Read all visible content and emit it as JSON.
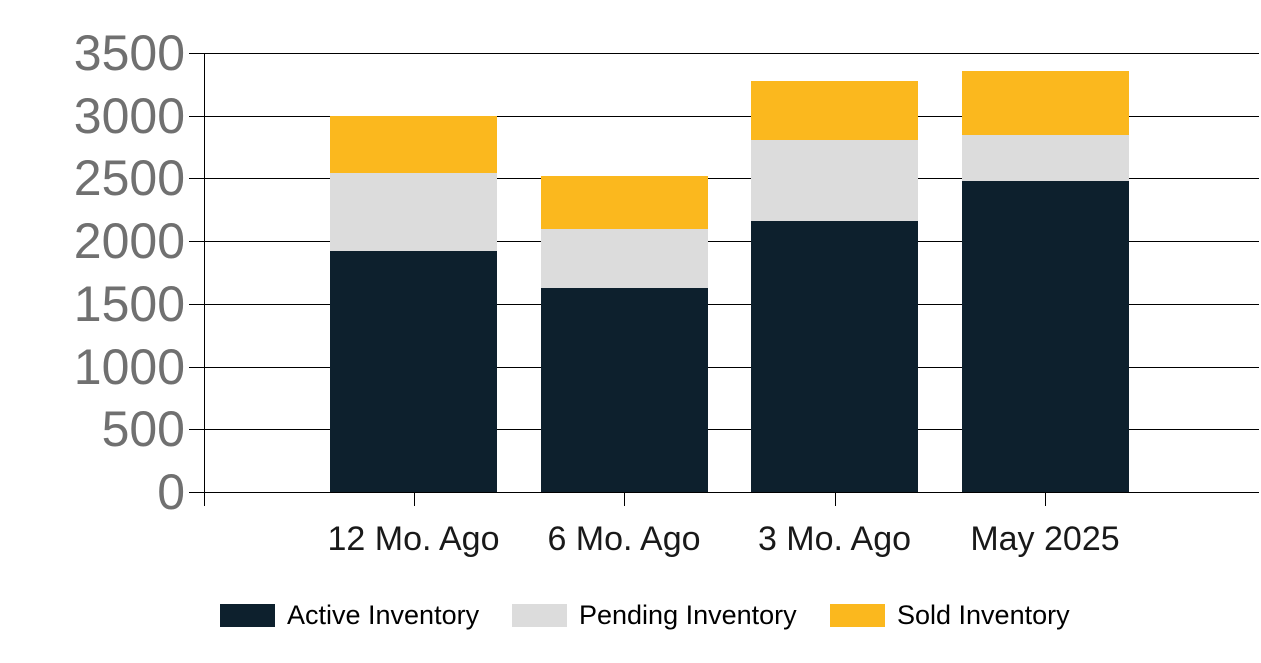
{
  "chart_data": {
    "type": "bar",
    "stacked": true,
    "title": "",
    "xlabel": "",
    "ylabel": "",
    "categories": [
      "12 Mo. Ago",
      "6 Mo. Ago",
      "3 Mo. Ago",
      "May 2025"
    ],
    "series": [
      {
        "name": "Active Inventory",
        "color": "#0d202d",
        "values": [
          1920,
          1625,
          2160,
          2480
        ]
      },
      {
        "name": "Pending Inventory",
        "color": "#dcdcdc",
        "values": [
          625,
          475,
          650,
          365
        ]
      },
      {
        "name": "Sold Inventory",
        "color": "#fbb81e",
        "values": [
          455,
          420,
          470,
          515
        ]
      }
    ],
    "stack_totals": [
      3000,
      2520,
      3280,
      3360
    ],
    "ylim": [
      0,
      3500
    ],
    "ytick_step": 500,
    "yticks": [
      0,
      500,
      1000,
      1500,
      2000,
      2500,
      3000,
      3500
    ],
    "grid": true,
    "legend_position": "bottom"
  },
  "colors": {
    "background": "#ffffff",
    "gridline": "#000000",
    "axis": "#000000",
    "y_tick_label": "#707070",
    "x_tick_label": "#191919",
    "legend_text": "#000000"
  }
}
